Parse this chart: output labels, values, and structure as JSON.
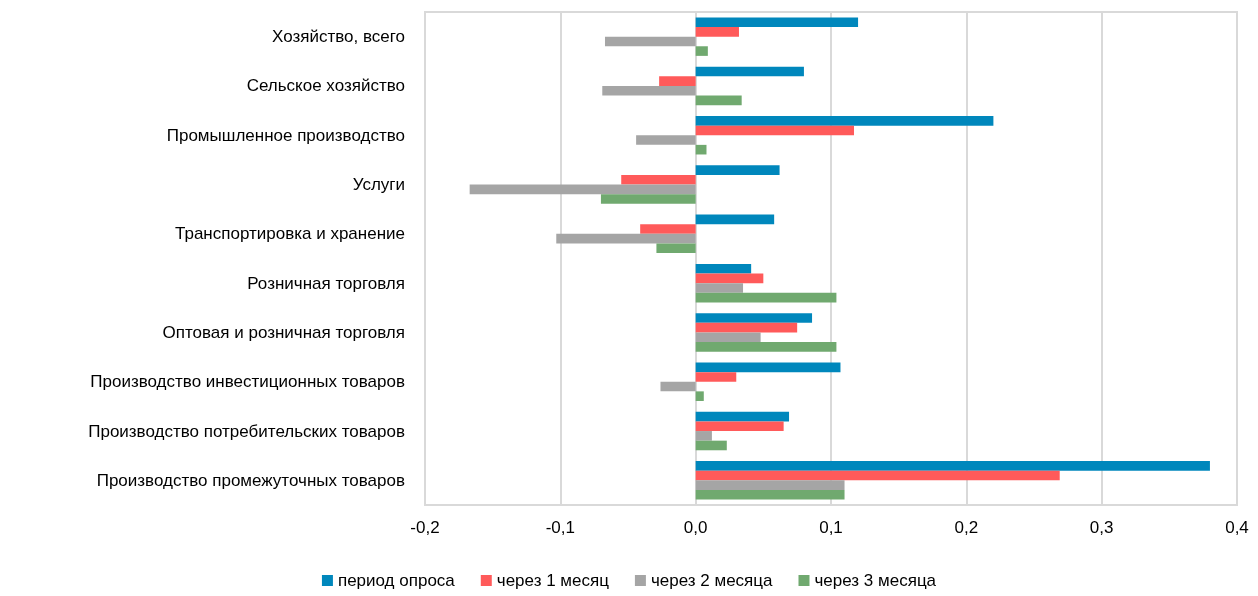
{
  "chart_data": {
    "type": "bar",
    "orientation": "horizontal",
    "categories": [
      "Хозяйство, всего",
      "Сельское хозяйство",
      "Промышленное производство",
      "Услуги",
      "Транспортировка и хранение",
      "Розничная торговля",
      "Оптовая и розничная торговля",
      "Производство инвестиционных товаров",
      "Производство потребительских товаров",
      "Производство промежуточных товаров"
    ],
    "series": [
      {
        "name": "период опроса",
        "color": "#0087bc",
        "values": [
          0.12,
          0.08,
          0.22,
          0.062,
          0.058,
          0.041,
          0.086,
          0.107,
          0.069,
          0.38
        ]
      },
      {
        "name": "через 1 месяц",
        "color": "#ff5a5a",
        "values": [
          0.032,
          -0.027,
          0.117,
          -0.055,
          -0.041,
          0.05,
          0.075,
          0.03,
          0.065,
          0.269
        ]
      },
      {
        "name": "через 2 месяца",
        "color": "#a5a5a5",
        "values": [
          -0.067,
          -0.069,
          -0.044,
          -0.167,
          -0.103,
          0.035,
          0.048,
          -0.026,
          0.012,
          0.11
        ]
      },
      {
        "name": "через 3 месяца",
        "color": "#70a96f",
        "values": [
          0.009,
          0.034,
          0.008,
          -0.07,
          -0.029,
          0.104,
          0.104,
          0.006,
          0.023,
          0.11
        ]
      }
    ],
    "xlim": [
      -0.2,
      0.4
    ],
    "xticks": [
      {
        "value": -0.2,
        "label": "-0,2"
      },
      {
        "value": -0.1,
        "label": "-0,1"
      },
      {
        "value": 0,
        "label": "0,0"
      },
      {
        "value": 0.1,
        "label": "0,1"
      },
      {
        "value": 0.2,
        "label": "0,2"
      },
      {
        "value": 0.3,
        "label": "0,3"
      },
      {
        "value": 0.4,
        "label": "0,4"
      }
    ],
    "grid": "x",
    "legend": "bottom"
  }
}
